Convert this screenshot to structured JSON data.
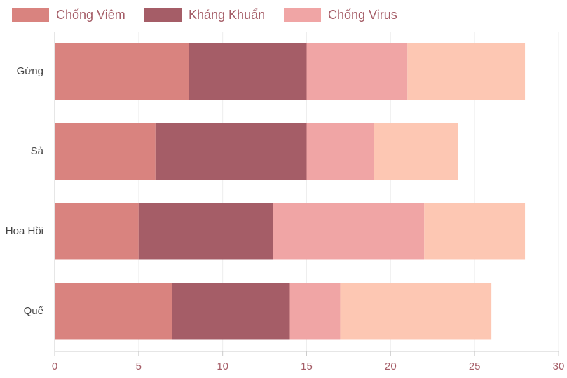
{
  "chart_data": {
    "type": "stacked-horizontal-bar",
    "categories": [
      "Gừng",
      "Sả",
      "Hoa Hồi",
      "Quế"
    ],
    "series": [
      {
        "name": "Chống Viêm",
        "color": "#d9837f",
        "values": [
          8,
          6,
          5,
          7
        ]
      },
      {
        "name": "Kháng Khuẩn",
        "color": "#a55d67",
        "values": [
          7,
          9,
          8,
          7
        ]
      },
      {
        "name": "Chống Virus",
        "color": "#f0a5a5",
        "values": [
          6,
          4,
          9,
          3
        ]
      },
      {
        "name": null,
        "color": "#fdc7b3",
        "values": [
          7,
          5,
          6,
          9
        ]
      }
    ],
    "xlim": [
      0,
      30
    ],
    "xticks": [
      0,
      5,
      10,
      15,
      20,
      25,
      30
    ],
    "grid": true
  }
}
